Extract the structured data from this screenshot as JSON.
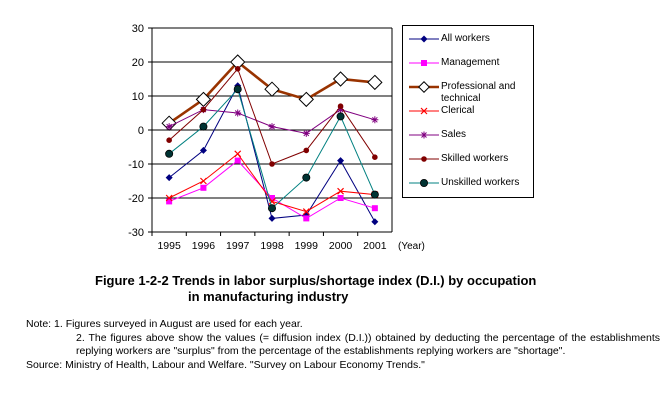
{
  "chart_data": {
    "type": "line",
    "title": "",
    "xlabel": "(Year)",
    "ylabel": "",
    "categories": [
      "1995",
      "1996",
      "1997",
      "1998",
      "1999",
      "2000",
      "2001"
    ],
    "ylim": [
      -30,
      30
    ],
    "yticks": [
      30,
      20,
      10,
      0,
      -10,
      -20,
      -30
    ],
    "grid": "horizontal",
    "legend": "right",
    "series": [
      {
        "name": "All workers",
        "values": [
          -14,
          -6,
          13,
          -26,
          -25,
          -9,
          -27
        ],
        "color": "#000080",
        "marker": "diamond"
      },
      {
        "name": "Management",
        "values": [
          -21,
          -17,
          -9,
          -20,
          -26,
          -20,
          -23
        ],
        "color": "#ff00ff",
        "marker": "square"
      },
      {
        "name": "Professional and technical",
        "values": [
          2,
          9,
          20,
          12,
          9,
          15,
          14
        ],
        "color": "#993300",
        "marker": "open-diamond"
      },
      {
        "name": "Clerical",
        "values": [
          -20,
          -15,
          -7,
          -21,
          -24,
          -18,
          -19
        ],
        "color": "#ff0000",
        "marker": "x"
      },
      {
        "name": "Sales",
        "values": [
          1,
          6,
          5,
          1,
          -1,
          6,
          3
        ],
        "color": "#800080",
        "marker": "star"
      },
      {
        "name": "Skilled workers",
        "values": [
          -3,
          6,
          18,
          -10,
          -6,
          7,
          -8
        ],
        "color": "#800000",
        "marker": "circle"
      },
      {
        "name": "Unskilled workers",
        "values": [
          -7,
          1,
          12,
          -23,
          -14,
          4,
          -19
        ],
        "color": "#008080",
        "marker": "filled-circle"
      }
    ]
  },
  "caption": {
    "line1": "Figure 1-2-2  Trends in labor surplus/shortage index (D.I.) by occupation",
    "line2": "in manufacturing industry"
  },
  "notes": {
    "note1": "Note: 1. Figures surveyed in August are used for each year.",
    "note2": "2. The figures above show the values (= diffusion index (D.I.)) obtained by deducting the percentage of the establishments replying workers are \"surplus\" from the percentage of the establishments replying workers are \"shortage\".",
    "source": "Source: Ministry of Health, Labour and Welfare. \"Survey on Labour Economy Trends.\""
  }
}
